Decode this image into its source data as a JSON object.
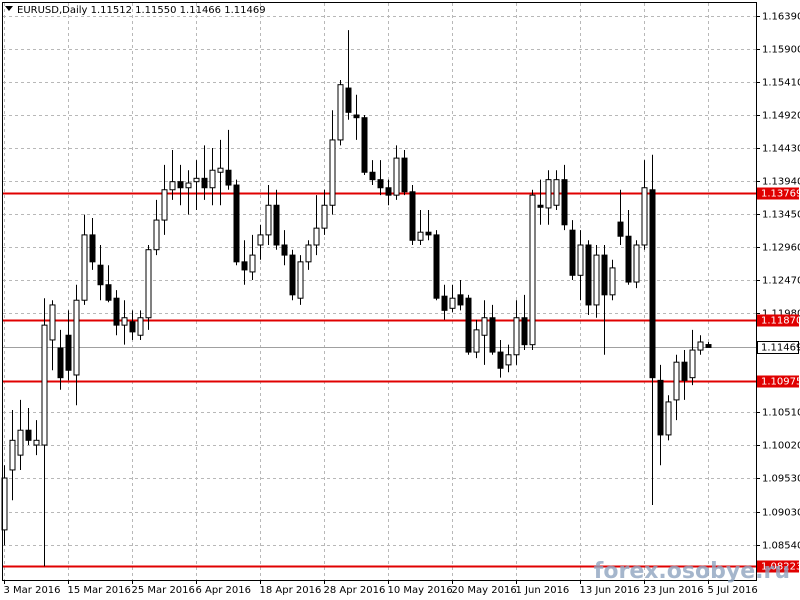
{
  "chart_data": {
    "type": "candlestick",
    "title": "EURUSD,Daily  1.11512 1.11550 1.11466 1.11469",
    "watermark": "forex.osobye.ru",
    "categories": [
      "3 Mar 2016",
      null,
      null,
      null,
      null,
      null,
      null,
      null,
      "15 Mar 2016",
      null,
      null,
      null,
      null,
      null,
      null,
      null,
      "25 Mar 2016",
      null,
      null,
      null,
      null,
      null,
      null,
      null,
      "6 Apr 2016",
      null,
      null,
      null,
      null,
      null,
      null,
      null,
      "18 Apr 2016",
      null,
      null,
      null,
      null,
      null,
      null,
      null,
      "28 Apr 2016",
      null,
      null,
      null,
      null,
      null,
      null,
      null,
      "10 May 2016",
      null,
      null,
      null,
      null,
      null,
      null,
      null,
      "20 May 2016",
      null,
      null,
      null,
      null,
      null,
      null,
      null,
      "1 Jun 2016",
      null,
      null,
      null,
      null,
      null,
      null,
      null,
      "13 Jun 2016",
      null,
      null,
      null,
      null,
      null,
      null,
      null,
      "23 Jun 2016",
      null,
      null,
      null,
      null,
      null,
      null,
      null,
      "5 Jul 2016"
    ],
    "open": [
      1.0876,
      1.0965,
      1.0987,
      1.1024,
      1.1002,
      1.1002,
      1.1158,
      1.1146,
      1.1165,
      1.1106,
      1.1217,
      1.1314,
      1.1269,
      1.124,
      1.122,
      1.118,
      1.1185,
      1.1165,
      1.1191,
      1.1292,
      1.1336,
      1.1381,
      1.1393,
      1.1384,
      1.1393,
      1.1398,
      1.1384,
      1.1407,
      1.141,
      1.1388,
      1.1274,
      1.1259,
      1.1299,
      1.1314,
      1.1358,
      1.1299,
      1.1284,
      1.122,
      1.1274,
      1.1299,
      1.1324,
      1.1358,
      1.1455,
      1.1532,
      1.1492,
      1.1488,
      1.1407,
      1.1396,
      1.1384,
      1.1373,
      1.1428,
      1.1378,
      1.1306,
      1.1318,
      1.1314,
      1.1223,
      1.1205,
      1.1225,
      1.122,
      1.114,
      1.1165,
      1.1191,
      1.114,
      1.1121,
      1.1136,
      1.1191,
      1.1151,
      1.1358,
      1.1354,
      1.1358,
      1.1396,
      1.1321,
      1.1254,
      1.1299,
      1.121,
      1.1284,
      1.1225,
      1.1333,
      1.1312,
      1.1244,
      1.1299,
      1.1381,
      1.1098,
      1.1017,
      1.1069,
      1.1125,
      1.1102,
      1.1143,
      1.11512
    ],
    "high": [
      1.0972,
      1.1054,
      1.1069,
      1.1057,
      1.1039,
      1.122,
      1.1217,
      1.1173,
      1.1202,
      1.124,
      1.1344,
      1.1339,
      1.1299,
      1.1269,
      1.1232,
      1.1217,
      1.1202,
      1.1202,
      1.1299,
      1.1366,
      1.1418,
      1.144,
      1.1418,
      1.141,
      1.1425,
      1.1447,
      1.1443,
      1.1455,
      1.147,
      1.1396,
      1.1306,
      1.1314,
      1.1329,
      1.1388,
      1.1381,
      1.1321,
      1.1292,
      1.1284,
      1.1306,
      1.1373,
      1.1381,
      1.1499,
      1.1544,
      1.1618,
      1.1522,
      1.1492,
      1.1425,
      1.1425,
      1.1396,
      1.1447,
      1.144,
      1.1388,
      1.1351,
      1.1351,
      1.1321,
      1.124,
      1.124,
      1.1247,
      1.1225,
      1.1188,
      1.1217,
      1.121,
      1.1158,
      1.1151,
      1.1217,
      1.1225,
      1.1381,
      1.1396,
      1.141,
      1.141,
      1.1418,
      1.1336,
      1.1321,
      1.1306,
      1.1299,
      1.1299,
      1.1277,
      1.1381,
      1.1351,
      1.1306,
      1.1425,
      1.1433,
      1.1121,
      1.1076,
      1.1136,
      1.1143,
      1.1173,
      1.1165,
      1.1155
    ],
    "low": [
      1.0853,
      1.092,
      1.0965,
      1.1002,
      1.0987,
      1.0822,
      1.1113,
      1.1084,
      1.1098,
      1.1061,
      1.121,
      1.1262,
      1.1217,
      1.1214,
      1.1165,
      1.1151,
      1.1158,
      1.1158,
      1.1173,
      1.1284,
      1.1314,
      1.1366,
      1.1358,
      1.1344,
      1.1351,
      1.1366,
      1.1358,
      1.1358,
      1.1381,
      1.1269,
      1.124,
      1.1247,
      1.1277,
      1.1299,
      1.1292,
      1.1269,
      1.1217,
      1.121,
      1.1262,
      1.1284,
      1.1314,
      1.1344,
      1.1447,
      1.1485,
      1.1455,
      1.1403,
      1.1388,
      1.1373,
      1.1358,
      1.1366,
      1.1373,
      1.1299,
      1.1299,
      1.1306,
      1.1217,
      1.1188,
      1.1199,
      1.1202,
      1.1136,
      1.1131,
      1.1121,
      1.1136,
      1.1102,
      1.111,
      1.1121,
      1.1143,
      1.1143,
      1.1329,
      1.1329,
      1.1351,
      1.1321,
      1.1247,
      1.1217,
      1.1195,
      1.1191,
      1.1136,
      1.1217,
      1.1299,
      1.124,
      1.1235,
      1.1292,
      1.0913,
      1.0972,
      1.1009,
      1.1039,
      1.1069,
      1.1091,
      1.1136,
      1.11466
    ],
    "close": [
      1.0953,
      1.1009,
      1.1024,
      1.1009,
      1.1009,
      1.118,
      1.121,
      1.1102,
      1.1113,
      1.1217,
      1.1314,
      1.1274,
      1.124,
      1.1217,
      1.118,
      1.1191,
      1.117,
      1.1191,
      1.1292,
      1.1336,
      1.1381,
      1.1393,
      1.1384,
      1.1391,
      1.1398,
      1.1384,
      1.141,
      1.1413,
      1.1388,
      1.1274,
      1.1262,
      1.1284,
      1.1314,
      1.1358,
      1.1299,
      1.1284,
      1.1225,
      1.1274,
      1.1299,
      1.1324,
      1.1358,
      1.1455,
      1.1537,
      1.1496,
      1.1488,
      1.1407,
      1.1396,
      1.1384,
      1.1373,
      1.1428,
      1.1378,
      1.1306,
      1.1318,
      1.1314,
      1.122,
      1.1202,
      1.122,
      1.121,
      1.114,
      1.1173,
      1.1191,
      1.114,
      1.1116,
      1.1136,
      1.1191,
      1.1151,
      1.1373,
      1.1355,
      1.1396,
      1.1396,
      1.1329,
      1.1254,
      1.1299,
      1.121,
      1.1284,
      1.1225,
      1.1265,
      1.1312,
      1.1244,
      1.1299,
      1.1384,
      1.1102,
      1.1017,
      1.1066,
      1.1125,
      1.1098,
      1.1143,
      1.1155,
      1.11469
    ],
    "ylim": [
      1.08016,
      1.16583
    ],
    "yticks": [
      {
        "value": 1.1639,
        "label": "1.16390"
      },
      {
        "value": 1.159,
        "label": "1.15900"
      },
      {
        "value": 1.1541,
        "label": "1.15410"
      },
      {
        "value": 1.1492,
        "label": "1.14920"
      },
      {
        "value": 1.1443,
        "label": "1.14430"
      },
      {
        "value": 1.1394,
        "label": "1.13940"
      },
      {
        "value": 1.1345,
        "label": "1.13450"
      },
      {
        "value": 1.1296,
        "label": "1.12960"
      },
      {
        "value": 1.1247,
        "label": "1.12470"
      },
      {
        "value": 1.1198,
        "label": "1.11980"
      },
      {
        "value": 1.1051,
        "label": "1.10510"
      },
      {
        "value": 1.1002,
        "label": "1.10020"
      },
      {
        "value": 1.0953,
        "label": "1.09530"
      },
      {
        "value": 1.0903,
        "label": "1.09030"
      },
      {
        "value": 1.0854,
        "label": "1.08540"
      }
    ],
    "levels": [
      1.13769,
      {
        "value": 1.1187,
        "label": "1.11870"
      },
      1.10975,
      1.08223
    ],
    "level_color": "#e00000",
    "last_price": 1.11469,
    "bull_color": "#ffffff",
    "bear_color": "#000000",
    "grid": true
  }
}
